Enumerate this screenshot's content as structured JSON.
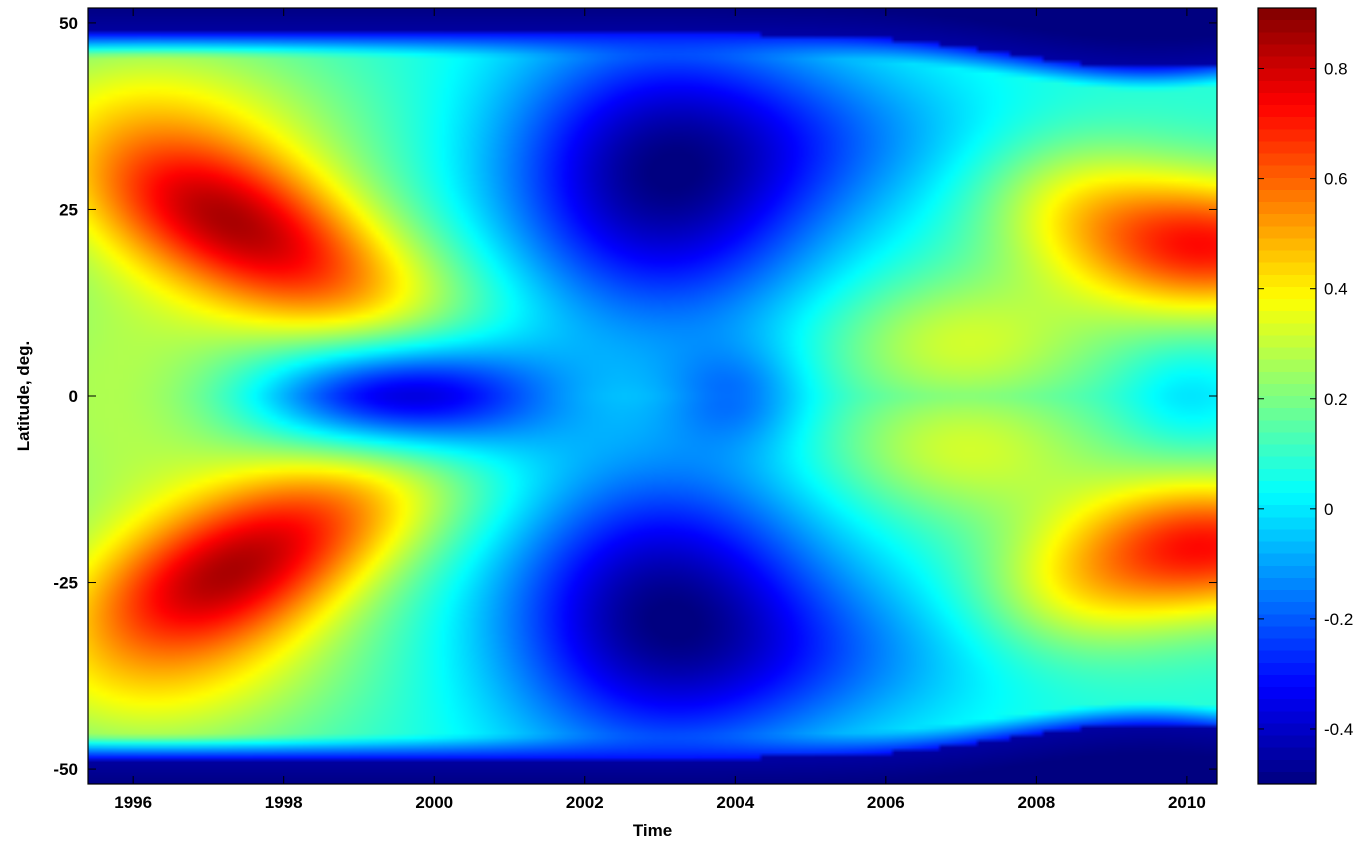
{
  "chart_data": {
    "type": "heatmap",
    "title": "",
    "xlabel": "Time",
    "ylabel": "Latitude, deg.",
    "xlim": [
      1995.4,
      2010.4
    ],
    "ylim": [
      -52,
      52
    ],
    "x_ticks": [
      1996,
      1998,
      2000,
      2002,
      2004,
      2006,
      2008,
      2010
    ],
    "y_ticks": [
      50,
      25,
      0,
      -25,
      -50
    ],
    "colorbar": {
      "range": [
        -0.5,
        0.91
      ],
      "ticks": [
        0.8,
        0.6,
        0.4,
        0.2,
        0,
        -0.2,
        -0.4
      ],
      "colormap": "jet"
    },
    "grid": false,
    "features": [
      {
        "time": 1997.8,
        "latitude": 21,
        "value": 0.6
      },
      {
        "time": 1997.8,
        "latitude": -21,
        "value": 0.6
      },
      {
        "time": 2009.9,
        "latitude": 20,
        "value": 0.65
      },
      {
        "time": 2009.9,
        "latitude": -20,
        "value": 0.65
      },
      {
        "time": 1999.6,
        "latitude": 0,
        "value": -0.4
      },
      {
        "time": 2003.0,
        "latitude": 28,
        "value": -0.42
      },
      {
        "time": 2003.0,
        "latitude": -30,
        "value": -0.42
      },
      {
        "time": 2007.0,
        "latitude": 7,
        "value": 0.3
      },
      {
        "time": 2007.0,
        "latitude": -7,
        "value": 0.3
      },
      {
        "time": 1996.0,
        "latitude": 0,
        "value": 0.25
      }
    ]
  }
}
